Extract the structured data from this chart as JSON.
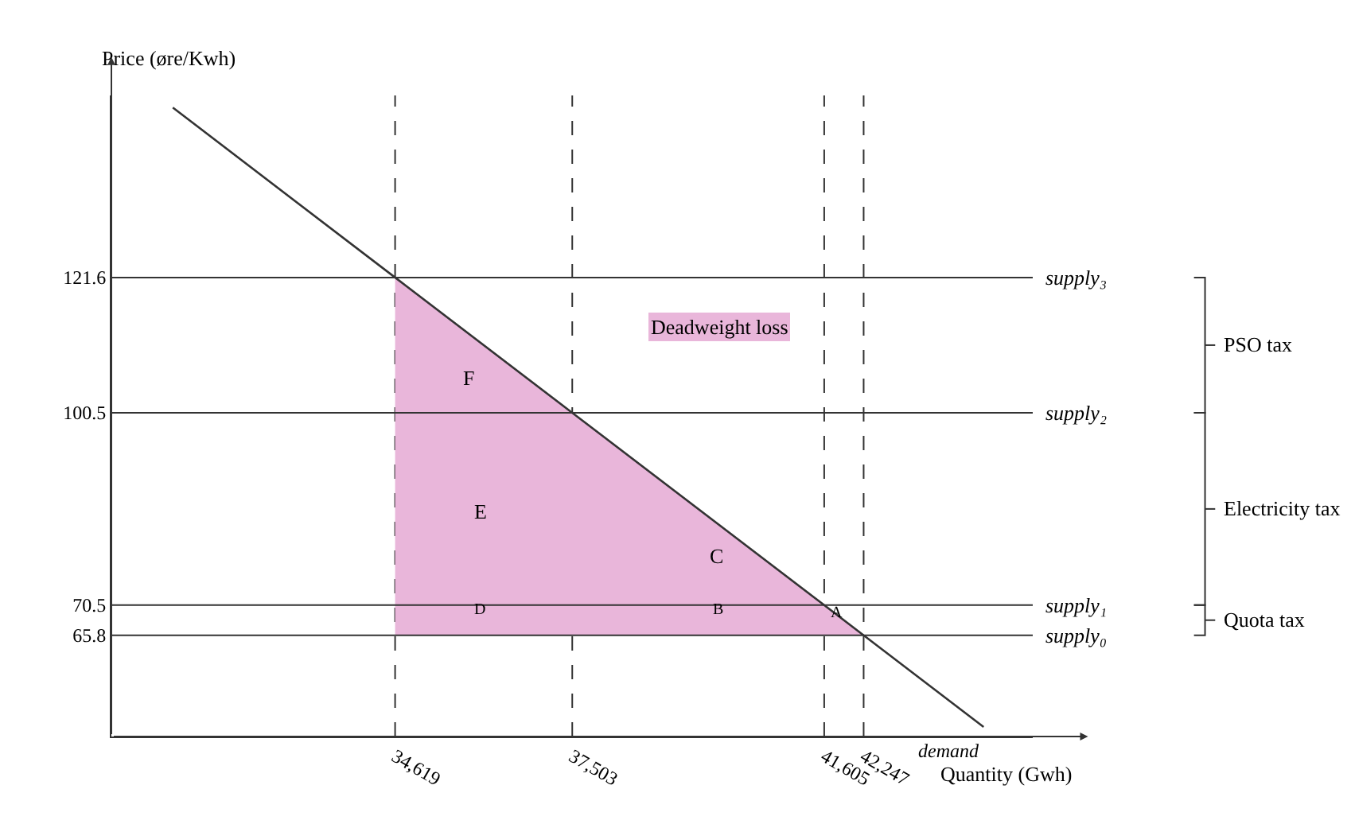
{
  "chart_data": {
    "type": "line",
    "xlabel": "Quantity (Gwh)",
    "ylabel": "Price (øre/Kwh)",
    "xlim": [
      30000,
      45000
    ],
    "ylim": [
      50,
      150
    ],
    "xticks": [
      {
        "value": 34619,
        "label": "34,619"
      },
      {
        "value": 37503,
        "label": "37,503"
      },
      {
        "value": 41605,
        "label": "41,605"
      },
      {
        "value": 42247,
        "label": "42,247"
      }
    ],
    "yticks": [
      121.6,
      100.5,
      70.5,
      65.8
    ],
    "grid": false,
    "legend": false,
    "marker": "none",
    "series": [
      {
        "name": "Deadweight loss",
        "type": "area",
        "color": "#e9b6da",
        "x": [
          34619,
          34619,
          42247
        ],
        "values": [
          65.8,
          121.6,
          65.8
        ]
      },
      {
        "name": "demand",
        "color": "#333333",
        "line_style": "solid",
        "x": [
          31000,
          34619,
          37503,
          41605,
          42247,
          44200
        ],
        "values": [
          148.1,
          121.6,
          100.5,
          70.5,
          65.8,
          51.5
        ]
      }
    ],
    "ref_lines": [
      {
        "axis": "y",
        "value": 121.6,
        "label": "supply₃",
        "color": "#333333",
        "line_style": "solid"
      },
      {
        "axis": "y",
        "value": 100.5,
        "label": "supply₂",
        "color": "#333333",
        "line_style": "solid"
      },
      {
        "axis": "y",
        "value": 70.5,
        "label": "supply₁",
        "color": "#333333",
        "line_style": "solid"
      },
      {
        "axis": "y",
        "value": 65.8,
        "label": "supply₀",
        "color": "#333333",
        "line_style": "solid"
      },
      {
        "axis": "x",
        "value": 34619,
        "color": "#333333",
        "line_style": "dashed"
      },
      {
        "axis": "x",
        "value": 37503,
        "color": "#333333",
        "line_style": "dashed"
      },
      {
        "axis": "x",
        "value": 41605,
        "color": "#333333",
        "line_style": "dashed"
      },
      {
        "axis": "x",
        "value": 42247,
        "color": "#333333",
        "line_style": "dashed"
      }
    ],
    "annotations": [
      "F",
      "E",
      "D",
      "C",
      "B",
      "A",
      "PSO tax",
      "Electricity tax",
      "Quota tax"
    ]
  }
}
